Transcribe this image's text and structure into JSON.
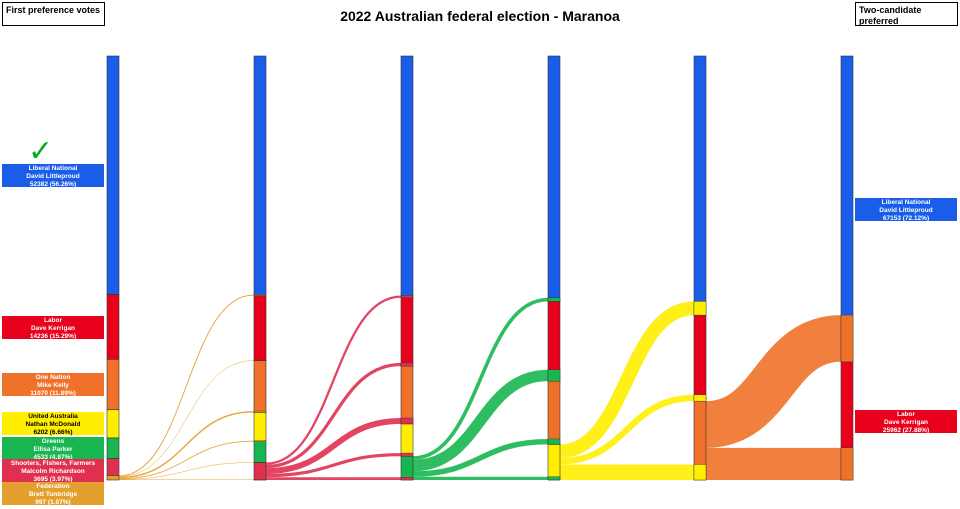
{
  "title": "2022 Australian federal election - Maranoa",
  "left_box_label": "First preference votes",
  "right_box_label": "Two-candidate preferred",
  "elected_marker": "✓",
  "icons": {
    "elected": "check-icon"
  },
  "colors": {
    "Liberal National": "#1a5de8",
    "Labor": "#e8001c",
    "One Nation": "#f0722a",
    "United Australia": "#ffee00",
    "Greens": "#18b650",
    "Shooters, Fishers, Farmers": "#e03050",
    "Federation": "#e3a02e"
  },
  "first_preference": [
    {
      "party": "Liberal National",
      "candidate": "David Littleproud",
      "votes_text": "52382 (56.26%)",
      "text_color": "#ffffff"
    },
    {
      "party": "Labor",
      "candidate": "Dave Kerrigan",
      "votes_text": "14236 (15.29%)",
      "text_color": "#ffffff"
    },
    {
      "party": "One Nation",
      "candidate": "Mike Kelly",
      "votes_text": "11070 (11.89%)",
      "text_color": "#ffffff"
    },
    {
      "party": "United Australia",
      "candidate": "Nathan McDonald",
      "votes_text": "6202 (6.66%)",
      "text_color": "#000000"
    },
    {
      "party": "Greens",
      "candidate": "Ellisa Parker",
      "votes_text": "4533 (4.87%)",
      "text_color": "#ffffff"
    },
    {
      "party": "Shooters, Fishers, Farmers",
      "candidate": "Malcolm Richardson",
      "votes_text": "3695 (3.97%)",
      "text_color": "#ffffff"
    },
    {
      "party": "Federation",
      "candidate": "Brett Tunbridge",
      "votes_text": "997 (1.07%)",
      "text_color": "#ffffff"
    }
  ],
  "two_candidate_preferred": [
    {
      "party": "Liberal National",
      "candidate": "David Littleproud",
      "votes_text": "67153 (72.12%)",
      "text_color": "#ffffff"
    },
    {
      "party": "Labor",
      "candidate": "Dave Kerrigan",
      "votes_text": "25962 (27.88%)",
      "text_color": "#ffffff"
    }
  ],
  "chart_data": {
    "type": "sankey",
    "total_votes": 93115,
    "counts": [
      [
        {
          "party": "Liberal National",
          "votes": 52382
        },
        {
          "party": "Labor",
          "votes": 14236
        },
        {
          "party": "One Nation",
          "votes": 11070
        },
        {
          "party": "United Australia",
          "votes": 6202
        },
        {
          "party": "Greens",
          "votes": 4533
        },
        {
          "party": "Shooters, Fishers, Farmers",
          "votes": 3695
        },
        {
          "party": "Federation",
          "votes": 997
        }
      ],
      [
        {
          "party": "Liberal National",
          "votes": 52600
        },
        {
          "party": "Labor",
          "votes": 14300
        },
        {
          "party": "One Nation",
          "votes": 11400
        },
        {
          "party": "United Australia",
          "votes": 6400
        },
        {
          "party": "Greens",
          "votes": 4600
        },
        {
          "party": "Shooters, Fishers, Farmers",
          "votes": 3815
        },
        {
          "party": "Federation",
          "votes": 0
        }
      ],
      [
        {
          "party": "Liberal National",
          "votes": 53100
        },
        {
          "party": "Labor",
          "votes": 15000
        },
        {
          "party": "One Nation",
          "votes": 12700
        },
        {
          "party": "United Australia",
          "votes": 7100
        },
        {
          "party": "Greens",
          "votes": 5215
        },
        {
          "party": "Shooters, Fishers, Farmers",
          "votes": 0
        },
        {
          "party": "Federation",
          "votes": 0
        }
      ],
      [
        {
          "party": "Liberal National",
          "votes": 53900
        },
        {
          "party": "Labor",
          "votes": 17500
        },
        {
          "party": "One Nation",
          "votes": 13900
        },
        {
          "party": "United Australia",
          "votes": 7815
        },
        {
          "party": "Greens",
          "votes": 0
        },
        {
          "party": "Shooters, Fishers, Farmers",
          "votes": 0
        },
        {
          "party": "Federation",
          "votes": 0
        }
      ],
      [
        {
          "party": "Liberal National",
          "votes": 56900
        },
        {
          "party": "Labor",
          "votes": 18900
        },
        {
          "party": "One Nation",
          "votes": 17315
        },
        {
          "party": "United Australia",
          "votes": 0
        },
        {
          "party": "Greens",
          "votes": 0
        },
        {
          "party": "Shooters, Fishers, Farmers",
          "votes": 0
        },
        {
          "party": "Federation",
          "votes": 0
        }
      ],
      [
        {
          "party": "Liberal National",
          "votes": 67153
        },
        {
          "party": "Labor",
          "votes": 25962
        },
        {
          "party": "One Nation",
          "votes": 0
        },
        {
          "party": "United Australia",
          "votes": 0
        },
        {
          "party": "Greens",
          "votes": 0
        },
        {
          "party": "Shooters, Fishers, Farmers",
          "votes": 0
        },
        {
          "party": "Federation",
          "votes": 0
        }
      ]
    ],
    "transfers": [
      {
        "from": "Federation",
        "flows": [
          {
            "to": "Liberal National",
            "votes": 218
          },
          {
            "to": "Labor",
            "votes": 64
          },
          {
            "to": "One Nation",
            "votes": 330
          },
          {
            "to": "United Australia",
            "votes": 198
          },
          {
            "to": "Greens",
            "votes": 67
          },
          {
            "to": "Shooters, Fishers, Farmers",
            "votes": 120
          }
        ]
      },
      {
        "from": "Shooters, Fishers, Farmers",
        "flows": [
          {
            "to": "Liberal National",
            "votes": 500
          },
          {
            "to": "Labor",
            "votes": 700
          },
          {
            "to": "One Nation",
            "votes": 1300
          },
          {
            "to": "United Australia",
            "votes": 700
          },
          {
            "to": "Greens",
            "votes": 615
          }
        ]
      },
      {
        "from": "Greens",
        "flows": [
          {
            "to": "Liberal National",
            "votes": 800
          },
          {
            "to": "Labor",
            "votes": 2500
          },
          {
            "to": "One Nation",
            "votes": 1200
          },
          {
            "to": "United Australia",
            "votes": 715
          }
        ]
      },
      {
        "from": "United Australia",
        "flows": [
          {
            "to": "Liberal National",
            "votes": 3000
          },
          {
            "to": "Labor",
            "votes": 1400
          },
          {
            "to": "One Nation",
            "votes": 3415
          }
        ]
      },
      {
        "from": "One Nation",
        "flows": [
          {
            "to": "Liberal National",
            "votes": 10253
          },
          {
            "to": "Labor",
            "votes": 7062
          }
        ]
      }
    ]
  }
}
